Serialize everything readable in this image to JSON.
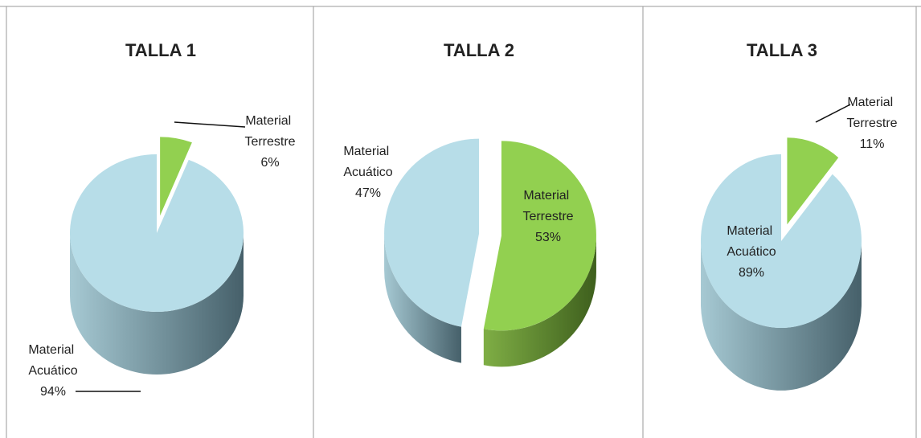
{
  "chart_data": [
    {
      "type": "pie",
      "title": "TALLA 1",
      "categories": [
        "Material Terrestre",
        "Material Acuático"
      ],
      "values": [
        6,
        94
      ],
      "value_labels": [
        "6%",
        "94%"
      ],
      "colors": [
        "#92d050",
        "#b7dde8"
      ]
    },
    {
      "type": "pie",
      "title": "TALLA 2",
      "categories": [
        "Material Terrestre",
        "Material Acuático"
      ],
      "values": [
        53,
        47
      ],
      "value_labels": [
        "53%",
        "47%"
      ],
      "colors": [
        "#92d050",
        "#b7dde8"
      ]
    },
    {
      "type": "pie",
      "title": "TALLA 3",
      "categories": [
        "Material Terrestre",
        "Material Acuático"
      ],
      "values": [
        11,
        89
      ],
      "value_labels": [
        "11%",
        "89%"
      ],
      "colors": [
        "#92d050",
        "#b7dde8"
      ]
    }
  ]
}
